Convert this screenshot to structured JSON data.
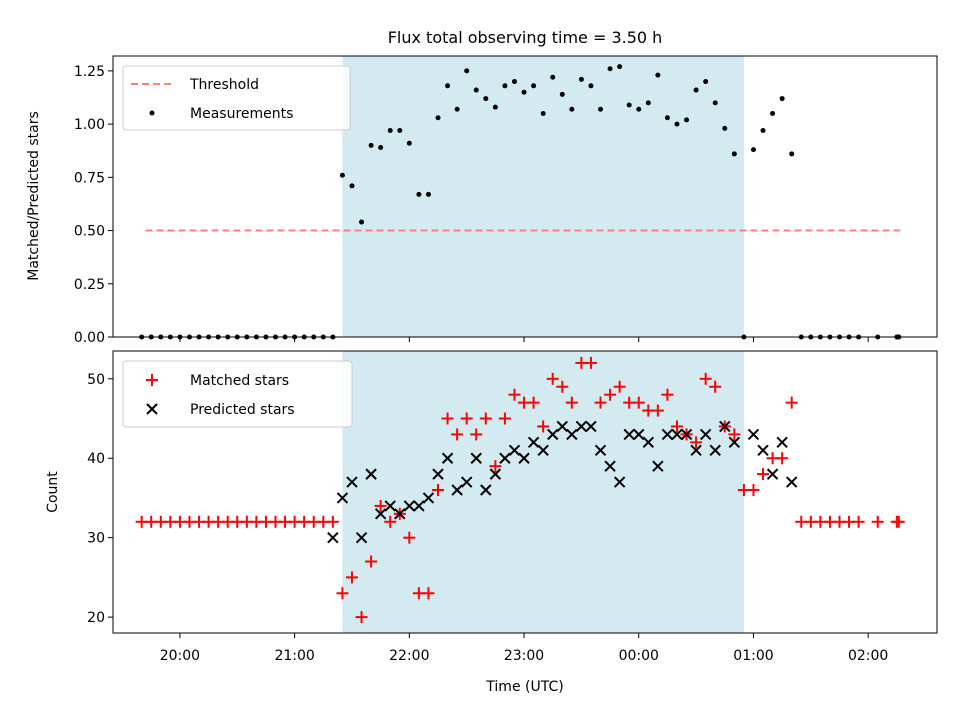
{
  "figure_title": "Flux total observing time = 3.50 h",
  "xlabel": "Time (UTC)",
  "x_ticks": [
    "20:00",
    "21:00",
    "22:00",
    "23:00",
    "00:00",
    "01:00",
    "02:00"
  ],
  "shade_color": "#d3eaf0",
  "chart_data": [
    {
      "type": "scatter",
      "ylabel": "Matched/Predicted stars",
      "ylim": [
        0,
        1.32
      ],
      "yticks": [
        "0.00",
        "0.25",
        "0.50",
        "0.75",
        "1.00",
        "1.25"
      ],
      "shaded_span": [
        "21:25",
        "00:55"
      ],
      "threshold": {
        "name": "Threshold",
        "value": 0.5,
        "x_start": "19:42",
        "x_end": "02:18",
        "color": "#ff7f7f"
      },
      "series": [
        {
          "name": "Measurements",
          "color": "#000000",
          "points": [
            [
              "19:40",
              0
            ],
            [
              "19:45",
              0
            ],
            [
              "19:50",
              0
            ],
            [
              "19:55",
              0
            ],
            [
              "20:00",
              0
            ],
            [
              "20:05",
              0
            ],
            [
              "20:10",
              0
            ],
            [
              "20:15",
              0
            ],
            [
              "20:20",
              0
            ],
            [
              "20:25",
              0
            ],
            [
              "20:30",
              0
            ],
            [
              "20:35",
              0
            ],
            [
              "20:40",
              0
            ],
            [
              "20:45",
              0
            ],
            [
              "20:50",
              0
            ],
            [
              "20:55",
              0
            ],
            [
              "21:00",
              0
            ],
            [
              "21:05",
              0
            ],
            [
              "21:10",
              0
            ],
            [
              "21:15",
              0
            ],
            [
              "21:20",
              0
            ],
            [
              "21:25",
              0.76
            ],
            [
              "21:30",
              0.71
            ],
            [
              "21:35",
              0.54
            ],
            [
              "21:40",
              0.9
            ],
            [
              "21:45",
              0.89
            ],
            [
              "21:50",
              0.97
            ],
            [
              "21:55",
              0.97
            ],
            [
              "22:00",
              0.91
            ],
            [
              "22:05",
              0.67
            ],
            [
              "22:10",
              0.67
            ],
            [
              "22:15",
              1.03
            ],
            [
              "22:20",
              1.18
            ],
            [
              "22:25",
              1.07
            ],
            [
              "22:30",
              1.25
            ],
            [
              "22:35",
              1.16
            ],
            [
              "22:40",
              1.12
            ],
            [
              "22:45",
              1.08
            ],
            [
              "22:50",
              1.18
            ],
            [
              "22:55",
              1.2
            ],
            [
              "23:00",
              1.15
            ],
            [
              "23:05",
              1.18
            ],
            [
              "23:10",
              1.05
            ],
            [
              "23:15",
              1.22
            ],
            [
              "23:20",
              1.14
            ],
            [
              "23:25",
              1.07
            ],
            [
              "23:30",
              1.21
            ],
            [
              "23:35",
              1.18
            ],
            [
              "23:40",
              1.07
            ],
            [
              "23:45",
              1.26
            ],
            [
              "23:50",
              1.27
            ],
            [
              "23:55",
              1.09
            ],
            [
              "00:00",
              1.07
            ],
            [
              "00:05",
              1.1
            ],
            [
              "00:10",
              1.23
            ],
            [
              "00:15",
              1.03
            ],
            [
              "00:20",
              1.0
            ],
            [
              "00:25",
              1.02
            ],
            [
              "00:30",
              1.16
            ],
            [
              "00:35",
              1.2
            ],
            [
              "00:40",
              1.1
            ],
            [
              "00:45",
              0.98
            ],
            [
              "00:50",
              0.86
            ],
            [
              "00:55",
              0
            ],
            [
              "01:00",
              0.88
            ],
            [
              "01:05",
              0.97
            ],
            [
              "01:10",
              1.05
            ],
            [
              "01:15",
              1.12
            ],
            [
              "01:20",
              0.86
            ],
            [
              "01:25",
              0
            ],
            [
              "01:30",
              0
            ],
            [
              "01:35",
              0
            ],
            [
              "01:40",
              0
            ],
            [
              "01:45",
              0
            ],
            [
              "01:50",
              0
            ],
            [
              "01:55",
              0
            ],
            [
              "02:05",
              0
            ],
            [
              "02:15",
              0
            ],
            [
              "02:16",
              0
            ]
          ]
        }
      ],
      "legend": "upper-left"
    },
    {
      "type": "scatter",
      "ylabel": "Count",
      "ylim": [
        18,
        53.5
      ],
      "yticks": [
        "20",
        "30",
        "40",
        "50"
      ],
      "shaded_span": [
        "21:25",
        "00:55"
      ],
      "series": [
        {
          "name": "Matched stars",
          "marker": "plus",
          "color": "#ff0000",
          "points": [
            [
              "19:40",
              32
            ],
            [
              "19:45",
              32
            ],
            [
              "19:50",
              32
            ],
            [
              "19:55",
              32
            ],
            [
              "20:00",
              32
            ],
            [
              "20:05",
              32
            ],
            [
              "20:10",
              32
            ],
            [
              "20:15",
              32
            ],
            [
              "20:20",
              32
            ],
            [
              "20:25",
              32
            ],
            [
              "20:30",
              32
            ],
            [
              "20:35",
              32
            ],
            [
              "20:40",
              32
            ],
            [
              "20:45",
              32
            ],
            [
              "20:50",
              32
            ],
            [
              "20:55",
              32
            ],
            [
              "21:00",
              32
            ],
            [
              "21:05",
              32
            ],
            [
              "21:10",
              32
            ],
            [
              "21:15",
              32
            ],
            [
              "21:20",
              32
            ],
            [
              "21:25",
              23
            ],
            [
              "21:30",
              25
            ],
            [
              "21:35",
              20
            ],
            [
              "21:40",
              27
            ],
            [
              "21:45",
              34
            ],
            [
              "21:50",
              32
            ],
            [
              "21:55",
              33
            ],
            [
              "22:00",
              30
            ],
            [
              "22:05",
              23
            ],
            [
              "22:10",
              23
            ],
            [
              "22:15",
              36
            ],
            [
              "22:20",
              45
            ],
            [
              "22:25",
              43
            ],
            [
              "22:30",
              45
            ],
            [
              "22:35",
              43
            ],
            [
              "22:40",
              45
            ],
            [
              "22:45",
              39
            ],
            [
              "22:50",
              45
            ],
            [
              "22:55",
              48
            ],
            [
              "23:00",
              47
            ],
            [
              "23:05",
              47
            ],
            [
              "23:10",
              44
            ],
            [
              "23:15",
              50
            ],
            [
              "23:20",
              49
            ],
            [
              "23:25",
              47
            ],
            [
              "23:30",
              52
            ],
            [
              "23:35",
              52
            ],
            [
              "23:40",
              47
            ],
            [
              "23:45",
              48
            ],
            [
              "23:50",
              49
            ],
            [
              "23:55",
              47
            ],
            [
              "00:00",
              47
            ],
            [
              "00:05",
              46
            ],
            [
              "00:10",
              46
            ],
            [
              "00:15",
              48
            ],
            [
              "00:20",
              44
            ],
            [
              "00:25",
              43
            ],
            [
              "00:30",
              42
            ],
            [
              "00:35",
              50
            ],
            [
              "00:40",
              49
            ],
            [
              "00:45",
              44
            ],
            [
              "00:50",
              43
            ],
            [
              "00:55",
              36
            ],
            [
              "01:00",
              36
            ],
            [
              "01:05",
              38
            ],
            [
              "01:10",
              40
            ],
            [
              "01:15",
              40
            ],
            [
              "01:20",
              47
            ],
            [
              "01:25",
              32
            ],
            [
              "01:30",
              32
            ],
            [
              "01:35",
              32
            ],
            [
              "01:40",
              32
            ],
            [
              "01:45",
              32
            ],
            [
              "01:50",
              32
            ],
            [
              "01:55",
              32
            ],
            [
              "02:05",
              32
            ],
            [
              "02:15",
              32
            ],
            [
              "02:16",
              32
            ]
          ]
        },
        {
          "name": "Predicted stars",
          "marker": "cross",
          "color": "#000000",
          "points": [
            [
              "21:20",
              30
            ],
            [
              "21:25",
              35
            ],
            [
              "21:30",
              37
            ],
            [
              "21:35",
              30
            ],
            [
              "21:40",
              38
            ],
            [
              "21:45",
              33
            ],
            [
              "21:50",
              34
            ],
            [
              "21:55",
              33
            ],
            [
              "22:00",
              34
            ],
            [
              "22:05",
              34
            ],
            [
              "22:10",
              35
            ],
            [
              "22:15",
              38
            ],
            [
              "22:20",
              40
            ],
            [
              "22:25",
              36
            ],
            [
              "22:30",
              37
            ],
            [
              "22:35",
              40
            ],
            [
              "22:40",
              36
            ],
            [
              "22:45",
              38
            ],
            [
              "22:50",
              40
            ],
            [
              "22:55",
              41
            ],
            [
              "23:00",
              40
            ],
            [
              "23:05",
              42
            ],
            [
              "23:10",
              41
            ],
            [
              "23:15",
              43
            ],
            [
              "23:20",
              44
            ],
            [
              "23:25",
              43
            ],
            [
              "23:30",
              44
            ],
            [
              "23:35",
              44
            ],
            [
              "23:40",
              41
            ],
            [
              "23:45",
              39
            ],
            [
              "23:50",
              37
            ],
            [
              "23:55",
              43
            ],
            [
              "00:00",
              43
            ],
            [
              "00:05",
              42
            ],
            [
              "00:10",
              39
            ],
            [
              "00:15",
              43
            ],
            [
              "00:20",
              43
            ],
            [
              "00:25",
              43
            ],
            [
              "00:30",
              41
            ],
            [
              "00:35",
              43
            ],
            [
              "00:40",
              41
            ],
            [
              "00:45",
              44
            ],
            [
              "00:50",
              42
            ],
            [
              "01:00",
              43
            ],
            [
              "01:05",
              41
            ],
            [
              "01:10",
              38
            ],
            [
              "01:15",
              42
            ],
            [
              "01:20",
              37
            ]
          ]
        }
      ],
      "legend": "upper-left"
    }
  ]
}
